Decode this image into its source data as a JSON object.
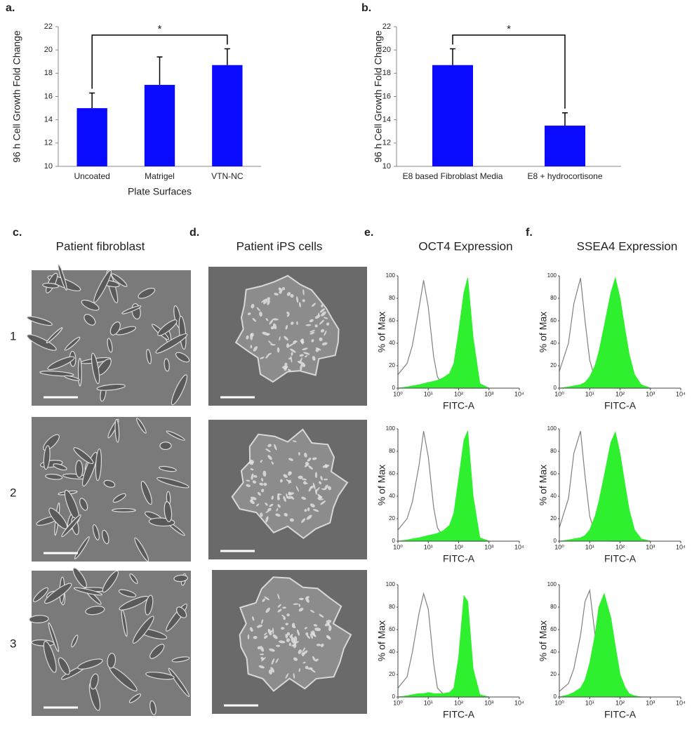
{
  "chart_data": [
    {
      "type": "bar",
      "panel": "a.",
      "y_label": "96 h Cell Growth Fold Change",
      "x_label": "Plate Surfaces",
      "categories": [
        "Uncoated",
        "Matrigel",
        "VTN-NC"
      ],
      "values": [
        15.0,
        17.0,
        18.7
      ],
      "errors": [
        1.3,
        2.4,
        1.4
      ],
      "color": "#0a0aff",
      "ylim": [
        10,
        22
      ],
      "yticks": [
        10,
        12,
        14,
        16,
        18,
        20,
        22
      ],
      "annotation": "*"
    },
    {
      "type": "bar",
      "panel": "b.",
      "y_label": "96 h Cell Growth Fold Change",
      "categories": [
        "E8 based Fibroblast Media",
        "E8 + hydrocortisone"
      ],
      "values": [
        18.7,
        13.5
      ],
      "errors": [
        1.4,
        1.1
      ],
      "color": "#0a0aff",
      "ylim": [
        10,
        22
      ],
      "yticks": [
        10,
        12,
        14,
        16,
        18,
        20,
        22
      ],
      "annotation": "*"
    },
    {
      "type": "histogram",
      "panel": "e.",
      "title": "OCT4 Expression",
      "y_label": "% of Max",
      "x_label": "FITC-A",
      "log_x": true,
      "xlim": [
        1,
        10000
      ],
      "xticks": [
        {
          "value": 1,
          "label": "10⁰"
        },
        {
          "value": 10,
          "label": "10¹"
        },
        {
          "value": 100,
          "label": "10²"
        },
        {
          "value": 1000,
          "label": "10³"
        },
        {
          "value": 10000,
          "label": "10⁴"
        }
      ],
      "ylim": [
        0,
        100
      ],
      "yticks": [
        0,
        20,
        40,
        60,
        80,
        100
      ],
      "x": [
        1,
        2,
        3,
        5,
        7,
        10,
        15,
        20,
        30,
        50,
        70,
        100,
        150,
        200,
        300,
        500,
        1000
      ],
      "series": [
        {
          "color": "#808080",
          "filled": false,
          "values": [
            12,
            22,
            38,
            72,
            96,
            72,
            28,
            10,
            3,
            1,
            0,
            0,
            0,
            0,
            0,
            0,
            0
          ]
        },
        {
          "color": "#2ef02e",
          "filled": true,
          "values": [
            0,
            1,
            2,
            3,
            4,
            5,
            6,
            7,
            9,
            13,
            22,
            50,
            85,
            98,
            45,
            4,
            0
          ]
        }
      ]
    },
    {
      "type": "histogram",
      "y_label": "% of Max",
      "x_label": "FITC-A",
      "log_x": true,
      "xlim": [
        1,
        10000
      ],
      "xticks": [
        {
          "value": 1,
          "label": "10⁰"
        },
        {
          "value": 10,
          "label": "10¹"
        },
        {
          "value": 100,
          "label": "10²"
        },
        {
          "value": 1000,
          "label": "10³"
        },
        {
          "value": 10000,
          "label": "10⁴"
        }
      ],
      "ylim": [
        0,
        100
      ],
      "yticks": [
        0,
        20,
        40,
        60,
        80,
        100
      ],
      "x": [
        1,
        2,
        3,
        5,
        7,
        10,
        15,
        20,
        30,
        50,
        70,
        100,
        150,
        200,
        300,
        500,
        1000
      ],
      "series": [
        {
          "color": "#808080",
          "filled": false,
          "values": [
            10,
            20,
            35,
            68,
            98,
            75,
            30,
            12,
            4,
            1,
            0,
            0,
            0,
            0,
            0,
            0,
            0
          ]
        },
        {
          "color": "#2ef02e",
          "filled": true,
          "values": [
            0,
            1,
            2,
            3,
            4,
            5,
            6,
            7,
            9,
            14,
            25,
            55,
            90,
            98,
            40,
            3,
            0
          ]
        }
      ]
    },
    {
      "type": "histogram",
      "y_label": "% of Max",
      "x_label": "FITC-A",
      "log_x": true,
      "xlim": [
        1,
        10000
      ],
      "xticks": [
        {
          "value": 1,
          "label": "10⁰"
        },
        {
          "value": 10,
          "label": "10¹"
        },
        {
          "value": 100,
          "label": "10²"
        },
        {
          "value": 1000,
          "label": "10³"
        },
        {
          "value": 10000,
          "label": "10⁴"
        }
      ],
      "ylim": [
        0,
        100
      ],
      "yticks": [
        0,
        20,
        40,
        60,
        80,
        100
      ],
      "x": [
        1,
        2,
        3,
        5,
        7,
        10,
        15,
        20,
        30,
        50,
        70,
        100,
        150,
        200,
        300,
        500,
        1000
      ],
      "series": [
        {
          "color": "#808080",
          "filled": false,
          "values": [
            8,
            18,
            40,
            75,
            92,
            78,
            30,
            8,
            3,
            1,
            0,
            0,
            0,
            0,
            0,
            0,
            0
          ]
        },
        {
          "color": "#2ef02e",
          "filled": true,
          "values": [
            0,
            1,
            2,
            3,
            3,
            4,
            3,
            3,
            3,
            4,
            8,
            35,
            90,
            85,
            25,
            2,
            0
          ]
        }
      ]
    },
    {
      "type": "histogram",
      "panel": "f.",
      "title": "SSEA4 Expression",
      "y_label": "% of Max",
      "x_label": "FITC-A",
      "log_x": true,
      "xlim": [
        1,
        10000
      ],
      "xticks": [
        {
          "value": 1,
          "label": "10⁰"
        },
        {
          "value": 10,
          "label": "10¹"
        },
        {
          "value": 100,
          "label": "10²"
        },
        {
          "value": 1000,
          "label": "10³"
        },
        {
          "value": 10000,
          "label": "10⁴"
        }
      ],
      "ylim": [
        0,
        100
      ],
      "yticks": [
        0,
        20,
        40,
        60,
        80,
        100
      ],
      "x": [
        1,
        2,
        3,
        5,
        7,
        10,
        15,
        20,
        30,
        50,
        70,
        100,
        150,
        200,
        300,
        500,
        1000
      ],
      "series": [
        {
          "color": "#808080",
          "filled": false,
          "values": [
            15,
            40,
            75,
            98,
            60,
            25,
            8,
            4,
            2,
            1,
            0,
            0,
            0,
            0,
            0,
            0,
            0
          ]
        },
        {
          "color": "#2ef02e",
          "filled": true,
          "values": [
            0,
            1,
            2,
            3,
            5,
            10,
            20,
            32,
            55,
            85,
            98,
            80,
            50,
            30,
            12,
            3,
            0
          ]
        }
      ]
    },
    {
      "type": "histogram",
      "y_label": "% of Max",
      "x_label": "FITC-A",
      "log_x": true,
      "xlim": [
        1,
        10000
      ],
      "xticks": [
        {
          "value": 1,
          "label": "10⁰"
        },
        {
          "value": 10,
          "label": "10¹"
        },
        {
          "value": 100,
          "label": "10²"
        },
        {
          "value": 1000,
          "label": "10³"
        },
        {
          "value": 10000,
          "label": "10⁴"
        }
      ],
      "ylim": [
        0,
        100
      ],
      "yticks": [
        0,
        20,
        40,
        60,
        80,
        100
      ],
      "x": [
        1,
        2,
        3,
        5,
        7,
        10,
        15,
        20,
        30,
        50,
        70,
        100,
        150,
        200,
        300,
        500,
        1000
      ],
      "series": [
        {
          "color": "#808080",
          "filled": false,
          "values": [
            12,
            38,
            78,
            98,
            58,
            22,
            7,
            3,
            1,
            0,
            0,
            0,
            0,
            0,
            0,
            0,
            0
          ]
        },
        {
          "color": "#2ef02e",
          "filled": true,
          "values": [
            0,
            1,
            2,
            3,
            5,
            10,
            22,
            35,
            58,
            88,
            97,
            78,
            48,
            28,
            10,
            2,
            0
          ]
        }
      ]
    },
    {
      "type": "histogram",
      "y_label": "% of Max",
      "x_label": "FITC-A",
      "log_x": true,
      "xlim": [
        1,
        10000
      ],
      "xticks": [
        {
          "value": 1,
          "label": "10⁰"
        },
        {
          "value": 10,
          "label": "10¹"
        },
        {
          "value": 100,
          "label": "10²"
        },
        {
          "value": 1000,
          "label": "10³"
        },
        {
          "value": 10000,
          "label": "10⁴"
        }
      ],
      "ylim": [
        0,
        100
      ],
      "yticks": [
        0,
        20,
        40,
        60,
        80,
        100
      ],
      "x": [
        1,
        2,
        3,
        5,
        7,
        10,
        15,
        20,
        30,
        50,
        70,
        100,
        150,
        200,
        300,
        500,
        1000
      ],
      "series": [
        {
          "color": "#808080",
          "filled": false,
          "values": [
            5,
            12,
            25,
            55,
            85,
            95,
            55,
            20,
            6,
            2,
            0,
            0,
            0,
            0,
            0,
            0,
            0
          ]
        },
        {
          "color": "#2ef02e",
          "filled": true,
          "values": [
            0,
            2,
            4,
            8,
            15,
            30,
            55,
            80,
            92,
            70,
            45,
            20,
            8,
            3,
            1,
            0,
            0
          ]
        }
      ]
    }
  ],
  "images": {
    "fibroblast": {
      "panel": "c.",
      "title": "Patient fibroblast"
    },
    "ips": {
      "panel": "d.",
      "title": "Patient iPS cells"
    },
    "rows": [
      "1",
      "2",
      "3"
    ]
  }
}
